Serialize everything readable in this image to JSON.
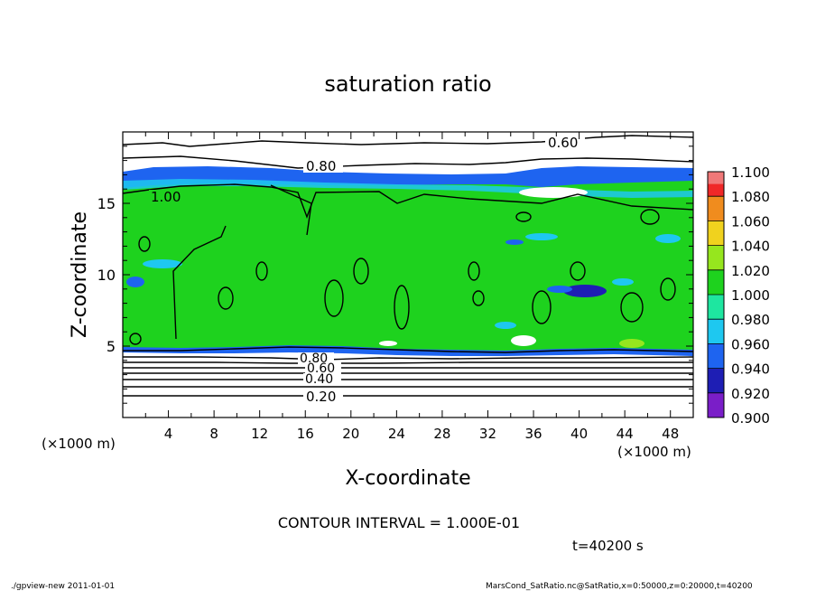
{
  "chart_data": {
    "type": "heatmap",
    "title": "saturation ratio",
    "xlabel": "X-coordinate",
    "ylabel": "Z-coordinate",
    "x_unit_left": "(×1000 m)",
    "x_unit_right": "(×1000 m)",
    "xlim": [
      0,
      50
    ],
    "ylim": [
      0,
      20
    ],
    "x_ticks": [
      "4",
      "8",
      "12",
      "16",
      "20",
      "24",
      "28",
      "32",
      "36",
      "40",
      "44",
      "48"
    ],
    "y_ticks": [
      "5",
      "10",
      "15"
    ],
    "colorbar": {
      "levels": [
        "0.900",
        "0.920",
        "0.940",
        "0.960",
        "0.980",
        "1.000",
        "1.020",
        "1.040",
        "1.060",
        "1.080",
        "1.100"
      ],
      "colors": [
        "#7a1ec8",
        "#1e1eb4",
        "#1e64f0",
        "#1ec8f0",
        "#1ee6a0",
        "#1ed21e",
        "#96e61e",
        "#f0d21e",
        "#f08c1e",
        "#f02828",
        "#f07878"
      ]
    },
    "contour_labels": [
      "0.60",
      "0.80",
      "1.00",
      "0.80",
      "0.60",
      "0.40",
      "0.20"
    ],
    "contour_interval_text": "CONTOUR INTERVAL = 1.000E-01",
    "time_text": "t=40200 s"
  },
  "footer": {
    "left": "./gpview-new   2011-01-01",
    "right": "MarsCond_SatRatio.nc@SatRatio,x=0:50000,z=0:20000,t=40200"
  },
  "colors": {
    "saturated_green": "#1ed21e",
    "ice_blue": "#1e64f0"
  }
}
